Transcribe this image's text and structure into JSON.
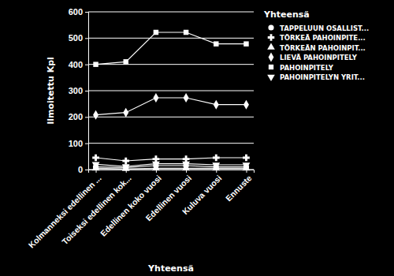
{
  "chart_data": {
    "type": "line",
    "x_label": "Yhteensä",
    "y_label": "Ilmoitettu Kpl",
    "legend_title": "Yhteensä",
    "categories": [
      "Kolmanneksi edellinen ...",
      "Toiseksi edellinen kok...",
      "Edellinen koko vuosi",
      "Edellinen vuosi",
      "Kuluva vuosi",
      "Ennuste"
    ],
    "series": [
      {
        "name": "TAPPELUUN OSALLIST...",
        "color": "#ffffff",
        "marker": "circle",
        "values": [
          10,
          8,
          15,
          15,
          10,
          10
        ]
      },
      {
        "name": "TÖRKEÄ PAHOINPITE...",
        "color": "#ffffff",
        "marker": "cross",
        "values": [
          45,
          33,
          40,
          40,
          45,
          45
        ]
      },
      {
        "name": "TÖRKEÄN PAHOINPIT...",
        "color": "#ffffff",
        "marker": "triangle",
        "values": [
          5,
          3,
          5,
          5,
          5,
          5
        ]
      },
      {
        "name": "LIEVÄ PAHOINPITELY",
        "color": "#ffffff",
        "marker": "diamond",
        "values": [
          208,
          217,
          273,
          273,
          247,
          247
        ]
      },
      {
        "name": "PAHOINPITELY",
        "color": "#ffffff",
        "marker": "square",
        "values": [
          400,
          410,
          522,
          522,
          478,
          478
        ]
      },
      {
        "name": "PAHOINPITELYN YRIT...",
        "color": "#ffffff",
        "marker": "triangle-down",
        "values": [
          20,
          12,
          22,
          22,
          18,
          18
        ]
      }
    ],
    "ylim": [
      0,
      600
    ],
    "yticks": [
      0,
      100,
      200,
      300,
      400,
      500,
      600
    ],
    "grid": true,
    "legend": "right"
  }
}
